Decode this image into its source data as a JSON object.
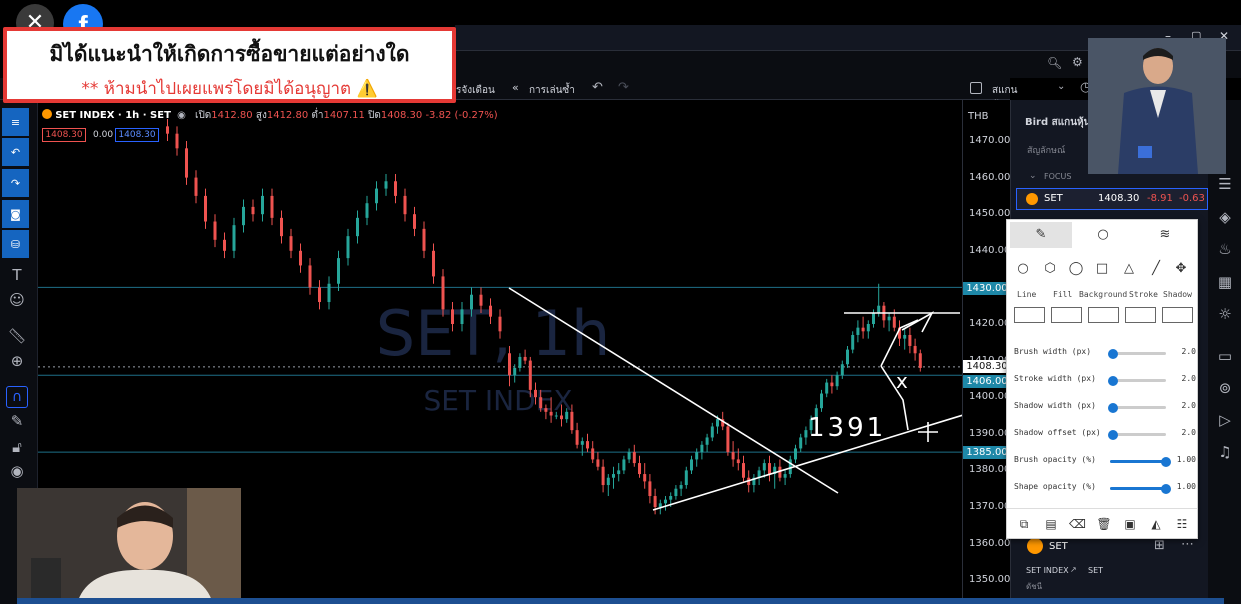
{
  "colors": {
    "accent": "#2962ff",
    "down": "#ef5350",
    "up": "#26a69a",
    "banner_border": "#e53935"
  },
  "window": {
    "controls": [
      "–",
      "▢",
      "✕"
    ]
  },
  "toolbar": {
    "left_label": "รจังเดือน",
    "replay_label": "การเล่นซ้ำ",
    "scanner_label": "สแกนหุ้น Live"
  },
  "banner": {
    "line1": "มิได้แนะนำให้เกิดการซื้อขายแต่อย่างใด",
    "line2": "** ห้ามนำไปเผยแพร่โดยมิได้อนุญาต ⚠️"
  },
  "legend": {
    "title": "SET INDEX · 1h · SET",
    "open_label": "เปิด",
    "open": "1412.80",
    "high_label": "สูง",
    "high": "1412.80",
    "low_label": "ต่ำ",
    "low": "1407.11",
    "close_label": "ปิด",
    "close": "1408.30",
    "change": "-3.82 (-0.27%)",
    "bid": "1408.30",
    "spread": "0.00",
    "ask": "1408.30"
  },
  "watermark": {
    "symbol": "SET, 1h",
    "name": "SET INDEX"
  },
  "price_axis": {
    "currency": "THB",
    "ticks": [
      "1470.00",
      "1460.00",
      "1450.00",
      "1440.00",
      "1430.00",
      "1420.00",
      "1410.00",
      "1400.00",
      "1390.00",
      "1380.00",
      "1370.00",
      "1360.00",
      "1350.00"
    ],
    "labels": [
      {
        "text": "1430.00",
        "kind": "line"
      },
      {
        "text": "1408.30",
        "kind": "last"
      },
      {
        "text": "1406.00",
        "kind": "line"
      },
      {
        "text": "1385.00",
        "kind": "line"
      }
    ]
  },
  "annotation": {
    "handwriting": "1391",
    "mark": "x"
  },
  "watchlist": {
    "title": "Bird สแกนหุ้น",
    "column_label": "สัญลักษณ์",
    "section": "FOCUS",
    "row": {
      "symbol": "SET",
      "last": "1408.30",
      "chg": "-8.91",
      "chg_pct": "-0.63"
    }
  },
  "details": {
    "symbol": "SET",
    "name": "SET INDEX",
    "exchange": "SET",
    "sub": "ดัชนี"
  },
  "popup": {
    "tabs": [
      "pencil-icon",
      "circle-icon",
      "shadow-icon"
    ],
    "color_labels": [
      "Line",
      "Fill",
      "Background",
      "Stroke",
      "Shadow"
    ],
    "sliders": [
      {
        "label": "Brush width (px)",
        "value": "2.0",
        "level": 0.05
      },
      {
        "label": "Stroke width (px)",
        "value": "2.0",
        "level": 0.05
      },
      {
        "label": "Shadow width (px)",
        "value": "2.0",
        "level": 0.05
      },
      {
        "label": "Shadow offset (px)",
        "value": "2.0",
        "level": 0.05
      },
      {
        "label": "Brush opacity (%)",
        "value": "1.00",
        "level": 1.0
      },
      {
        "label": "Shape opacity (%)",
        "value": "1.00",
        "level": 1.0
      }
    ]
  },
  "candles": [
    [
      1412,
      1414,
      1403,
      1406
    ],
    [
      1406,
      1409,
      1404,
      1408
    ],
    [
      1408,
      1412,
      1407,
      1411
    ],
    [
      1411,
      1413,
      1409,
      1410
    ],
    [
      1410,
      1411,
      1400,
      1402
    ],
    [
      1402,
      1404,
      1398,
      1400
    ],
    [
      1400,
      1402,
      1396,
      1397
    ],
    [
      1397,
      1398,
      1394,
      1396
    ],
    [
      1396,
      1400,
      1393,
      1395
    ],
    [
      1395,
      1396,
      1394,
      1395
    ],
    [
      1395,
      1398,
      1392,
      1394
    ],
    [
      1394,
      1397,
      1393,
      1396
    ],
    [
      1396,
      1398,
      1390,
      1391
    ],
    [
      1391,
      1393,
      1386,
      1387
    ],
    [
      1387,
      1389,
      1384,
      1388
    ],
    [
      1388,
      1390,
      1385,
      1386
    ],
    [
      1386,
      1388,
      1382,
      1383
    ],
    [
      1383,
      1385,
      1380,
      1381
    ],
    [
      1381,
      1383,
      1374,
      1376
    ],
    [
      1376,
      1379,
      1373,
      1378
    ],
    [
      1378,
      1381,
      1375,
      1379
    ],
    [
      1379,
      1382,
      1377,
      1380
    ],
    [
      1380,
      1384,
      1379,
      1383
    ],
    [
      1383,
      1386,
      1382,
      1385
    ],
    [
      1385,
      1387,
      1381,
      1382
    ],
    [
      1382,
      1384,
      1378,
      1379
    ],
    [
      1379,
      1382,
      1375,
      1377
    ],
    [
      1377,
      1379,
      1371,
      1373
    ],
    [
      1373,
      1375,
      1368,
      1370
    ],
    [
      1370,
      1372,
      1368,
      1371
    ],
    [
      1371,
      1373,
      1369,
      1372
    ],
    [
      1372,
      1374,
      1370,
      1373
    ],
    [
      1373,
      1376,
      1372,
      1375
    ],
    [
      1375,
      1377,
      1373,
      1376
    ],
    [
      1376,
      1381,
      1375,
      1380
    ],
    [
      1380,
      1384,
      1379,
      1383
    ],
    [
      1383,
      1386,
      1381,
      1385
    ],
    [
      1385,
      1388,
      1383,
      1387
    ],
    [
      1387,
      1390,
      1385,
      1389
    ],
    [
      1389,
      1393,
      1388,
      1392
    ],
    [
      1392,
      1395,
      1390,
      1394
    ],
    [
      1394,
      1396,
      1391,
      1392
    ],
    [
      1392,
      1393,
      1384,
      1385
    ],
    [
      1385,
      1388,
      1381,
      1383
    ],
    [
      1383,
      1386,
      1380,
      1382
    ],
    [
      1382,
      1384,
      1377,
      1378
    ],
    [
      1378,
      1380,
      1374,
      1376
    ],
    [
      1376,
      1379,
      1374,
      1378
    ],
    [
      1378,
      1381,
      1376,
      1380
    ],
    [
      1380,
      1383,
      1378,
      1382
    ],
    [
      1382,
      1384,
      1377,
      1379
    ],
    [
      1379,
      1382,
      1375,
      1381
    ],
    [
      1381,
      1383,
      1377,
      1378
    ],
    [
      1378,
      1380,
      1376,
      1379
    ],
    [
      1379,
      1384,
      1378,
      1383
    ],
    [
      1383,
      1387,
      1382,
      1386
    ],
    [
      1386,
      1390,
      1385,
      1389
    ],
    [
      1389,
      1392,
      1387,
      1391
    ],
    [
      1391,
      1395,
      1390,
      1394
    ],
    [
      1394,
      1398,
      1393,
      1397
    ],
    [
      1397,
      1402,
      1396,
      1401
    ],
    [
      1401,
      1405,
      1400,
      1404
    ],
    [
      1404,
      1406,
      1401,
      1403
    ],
    [
      1403,
      1407,
      1402,
      1406
    ],
    [
      1406,
      1410,
      1405,
      1409
    ],
    [
      1409,
      1414,
      1408,
      1413
    ],
    [
      1413,
      1418,
      1412,
      1417
    ],
    [
      1417,
      1421,
      1415,
      1419
    ],
    [
      1419,
      1422,
      1416,
      1418
    ],
    [
      1418,
      1421,
      1416,
      1420
    ],
    [
      1420,
      1424,
      1419,
      1423
    ],
    [
      1423,
      1431,
      1422,
      1425
    ],
    [
      1425,
      1426,
      1419,
      1421
    ],
    [
      1421,
      1423,
      1418,
      1422
    ],
    [
      1422,
      1424,
      1418,
      1419
    ],
    [
      1419,
      1421,
      1414,
      1416
    ],
    [
      1416,
      1419,
      1413,
      1417
    ],
    [
      1417,
      1419,
      1412,
      1414
    ],
    [
      1414,
      1416,
      1410,
      1412
    ],
    [
      1412,
      1413,
      1407,
      1408
    ]
  ]
}
